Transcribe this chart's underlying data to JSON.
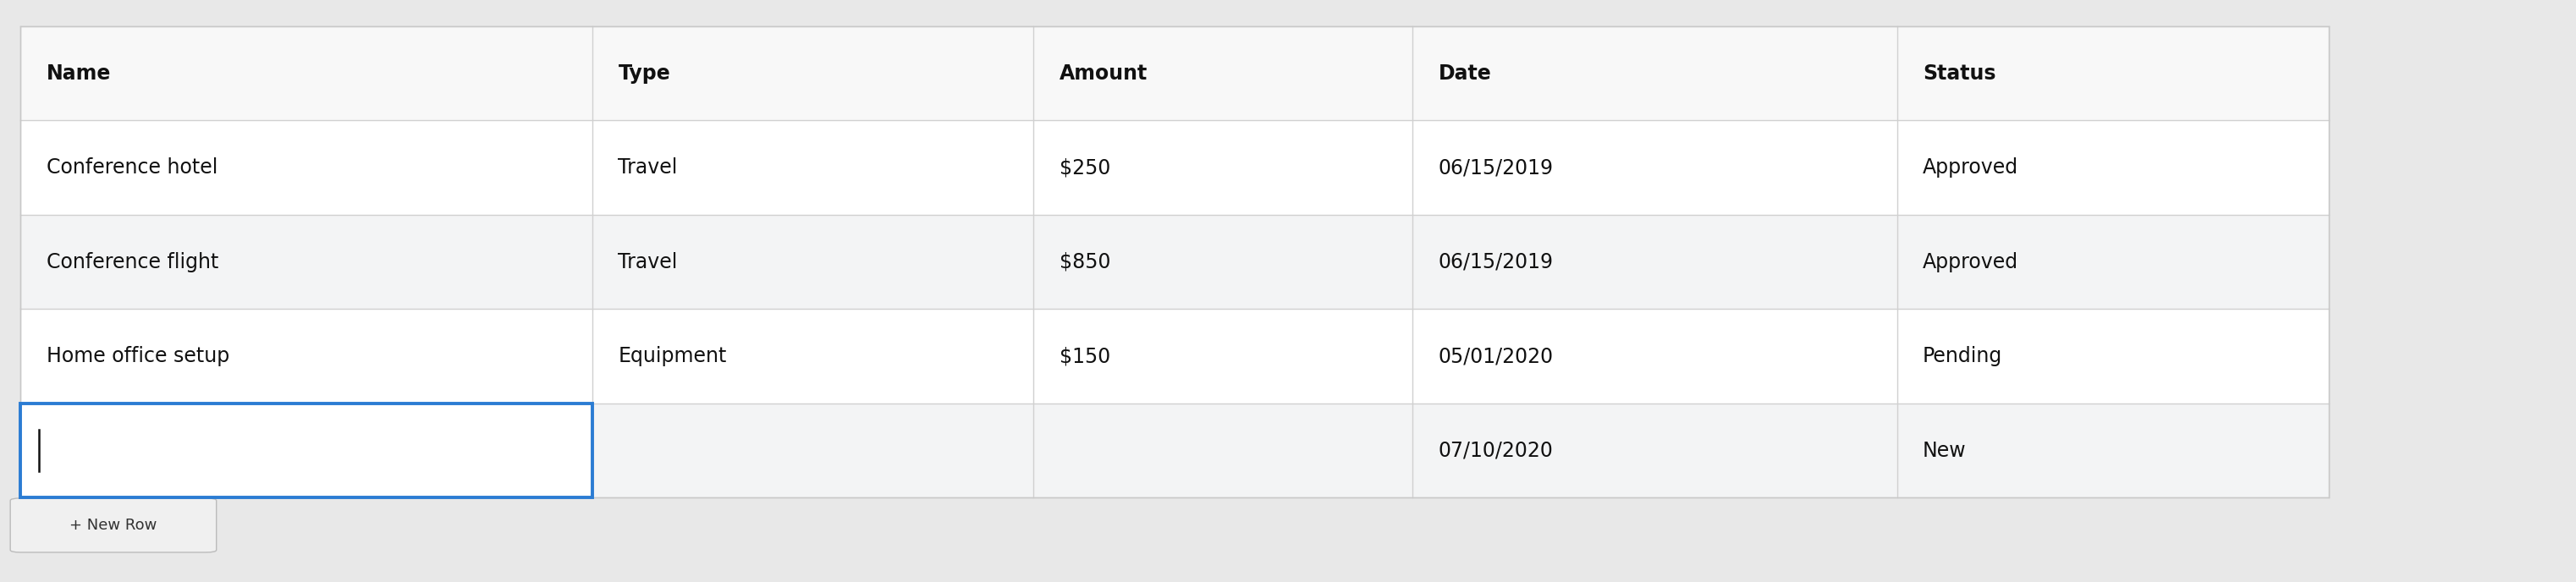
{
  "columns": [
    "Name",
    "Type",
    "Amount",
    "Date",
    "Status"
  ],
  "rows": [
    [
      "Conference hotel",
      "Travel",
      "$250",
      "06/15/2019",
      "Approved"
    ],
    [
      "Conference flight",
      "Travel",
      "$850",
      "06/15/2019",
      "Approved"
    ],
    [
      "Home office setup",
      "Equipment",
      "$150",
      "05/01/2020",
      "Pending"
    ],
    [
      "",
      "",
      "",
      "07/10/2020",
      "New"
    ]
  ],
  "header_bg": "#f8f8f8",
  "row_bg_white": "#ffffff",
  "row_bg_grey": "#f3f4f5",
  "new_row_bg": "#f3f4f5",
  "border_color": "#d0d0d0",
  "header_font_weight": "bold",
  "cell_font_size": 17,
  "header_font_size": 17,
  "active_cell_border_color": "#2B7CD3",
  "outer_border_color": "#c8c8c8",
  "figure_bg": "#e8e8e8",
  "new_row_button_text": "+ New Row",
  "font_family": "DejaVu Sans",
  "col_props": [
    0.2185,
    0.1685,
    0.145,
    0.185,
    0.165
  ]
}
